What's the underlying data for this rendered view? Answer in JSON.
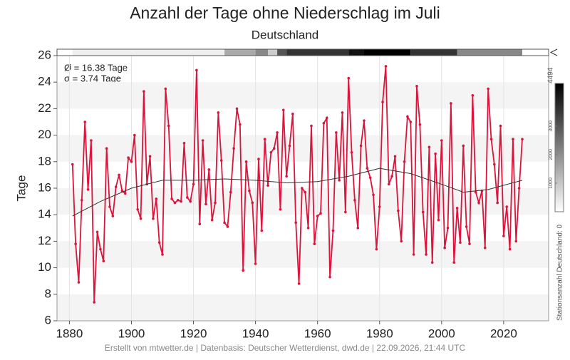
{
  "chart_data": {
    "type": "line",
    "title": "Anzahl der Tage ohne Niederschlag im Juli",
    "subtitle": "Deutschland",
    "y_label": "Tage",
    "annotations": [
      "Ø = 16.38 Tage",
      "σ = 3.74 Tage"
    ],
    "footer": "Erstellt von mtwetter.de | Datenbasis: Deutscher Wetterdienst, dwd.de | 22.09.2026, 21:44 UTC",
    "xlim": [
      1876,
      2034.5
    ],
    "ylim": [
      6,
      26
    ],
    "xticks": [
      1880,
      1900,
      1920,
      1940,
      1960,
      1980,
      2000,
      2020
    ],
    "yticks": [
      6,
      8,
      10,
      12,
      14,
      16,
      18,
      20,
      22,
      24,
      26
    ],
    "grid": true,
    "series": [
      {
        "color": "#dc143c",
        "x": [
          1881,
          1882,
          1883,
          1884,
          1885,
          1886,
          1887,
          1888,
          1889,
          1890,
          1891,
          1892,
          1893,
          1894,
          1895,
          1896,
          1897,
          1898,
          1899,
          1900,
          1901,
          1902,
          1903,
          1904,
          1905,
          1906,
          1907,
          1908,
          1909,
          1910,
          1911,
          1912,
          1913,
          1914,
          1915,
          1916,
          1917,
          1918,
          1919,
          1920,
          1921,
          1922,
          1923,
          1924,
          1925,
          1926,
          1927,
          1928,
          1929,
          1930,
          1931,
          1932,
          1933,
          1934,
          1935,
          1936,
          1937,
          1938,
          1939,
          1940,
          1941,
          1942,
          1943,
          1944,
          1945,
          1946,
          1947,
          1948,
          1949,
          1950,
          1951,
          1952,
          1953,
          1954,
          1955,
          1956,
          1957,
          1958,
          1959,
          1960,
          1961,
          1962,
          1963,
          1964,
          1965,
          1966,
          1967,
          1968,
          1969,
          1970,
          1971,
          1972,
          1973,
          1974,
          1975,
          1976,
          1977,
          1978,
          1979,
          1980,
          1981,
          1982,
          1983,
          1984,
          1985,
          1986,
          1987,
          1988,
          1989,
          1990,
          1991,
          1992,
          1993,
          1994,
          1995,
          1996,
          1997,
          1998,
          1999,
          2000,
          2001,
          2002,
          2003,
          2004,
          2005,
          2006,
          2007,
          2008,
          2009,
          2010,
          2011,
          2012,
          2013,
          2014,
          2015,
          2016,
          2017,
          2018,
          2019,
          2020,
          2021,
          2022,
          2023,
          2024,
          2025,
          2026
        ],
        "values": [
          17.8,
          11.8,
          8.9,
          15.1,
          21.0,
          15.9,
          19.6,
          7.4,
          12.7,
          11.4,
          10.5,
          19.0,
          14.6,
          13.9,
          16.1,
          17.0,
          15.8,
          15.6,
          18.3,
          18.0,
          20.0,
          14.4,
          13.7,
          23.3,
          16.3,
          18.4,
          13.7,
          15.2,
          11.9,
          11.0,
          23.5,
          20.7,
          15.2,
          14.9,
          15.1,
          15.0,
          19.4,
          15.3,
          15.0,
          16.3,
          24.9,
          13.3,
          19.6,
          14.8,
          17.4,
          13.6,
          14.9,
          21.7,
          18.1,
          13.4,
          13.1,
          15.7,
          19.0,
          22.0,
          20.8,
          9.8,
          18.0,
          15.8,
          14.9,
          10.3,
          18.2,
          12.8,
          19.7,
          16.2,
          18.7,
          19.0,
          20.2,
          14.4,
          21.9,
          16.9,
          19.2,
          21.6,
          13.4,
          8.8,
          16.0,
          15.7,
          13.0,
          20.7,
          11.8,
          13.9,
          14.1,
          20.9,
          21.3,
          9.3,
          12.8,
          20.2,
          16.6,
          21.7,
          14.2,
          24.3,
          18.7,
          15.1,
          13.0,
          19.2,
          21.1,
          17.5,
          16.8,
          15.5,
          11.4,
          14.6,
          22.5,
          25.2,
          16.3,
          16.9,
          18.4,
          14.3,
          12.0,
          18.0,
          21.4,
          21.0,
          11.0,
          23.7,
          20.8,
          14.2,
          11.0,
          19.1,
          10.4,
          18.6,
          13.6,
          19.6,
          11.5,
          13.0,
          22.4,
          10.4,
          14.5,
          11.9,
          19.2,
          13.1,
          11.8,
          23.0,
          15.7,
          14.9,
          15.8,
          11.5,
          23.5,
          19.7,
          17.8,
          14.9,
          20.7,
          12.4,
          14.6,
          11.4,
          19.7,
          12.0,
          16.0,
          19.7
        ]
      },
      {
        "color": "#333333",
        "x": [
          1881,
          1890,
          1900,
          1910,
          1920,
          1930,
          1940,
          1950,
          1960,
          1970,
          1980,
          1990,
          2000,
          2007,
          2015,
          2026
        ],
        "values": [
          13.9,
          15.0,
          16.0,
          16.6,
          16.6,
          16.7,
          16.6,
          16.4,
          16.5,
          16.9,
          17.5,
          17.1,
          16.3,
          15.7,
          15.9,
          16.6
        ]
      }
    ],
    "stations": {
      "bins": [
        1881,
        1930,
        1940,
        1944,
        1947,
        1950,
        1970,
        1975,
        1990,
        2005,
        2026
      ],
      "values": [
        300,
        1500,
        2100,
        900,
        3000,
        3600,
        4200,
        4494,
        3600,
        2100
      ]
    },
    "colorbar": {
      "label": "Stationsanzahl Deutschland: 0",
      "clim": [
        0,
        4494
      ],
      "ticks": [
        1000,
        2000,
        3000,
        4494
      ]
    }
  }
}
